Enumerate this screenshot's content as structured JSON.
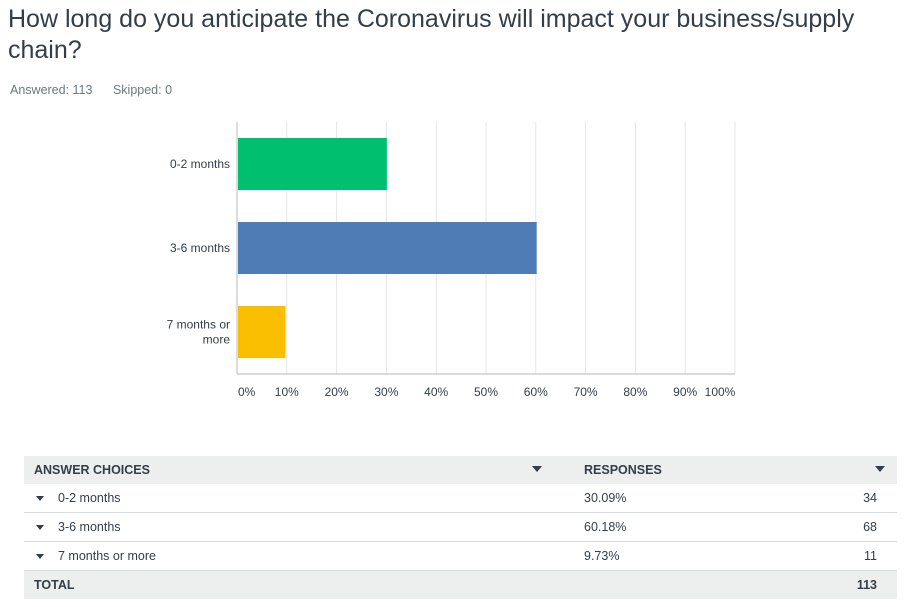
{
  "question": {
    "title": "How long do you anticipate the Coronavirus will impact your business/supply chain?",
    "answered": "Answered: 113",
    "skipped": "Skipped: 0"
  },
  "chart_data": {
    "type": "bar",
    "orientation": "horizontal",
    "categories": [
      "0-2 months",
      "3-6 months",
      "7 months or more"
    ],
    "category_lines": [
      [
        "0-2 months"
      ],
      [
        "3-6 months"
      ],
      [
        "7 months or",
        "more"
      ]
    ],
    "values": [
      30.09,
      60.18,
      9.73
    ],
    "colors": [
      "#00bf6f",
      "#507cb6",
      "#f9be00"
    ],
    "xlim": [
      0,
      100
    ],
    "ticks": [
      "0%",
      "10%",
      "20%",
      "30%",
      "40%",
      "50%",
      "60%",
      "70%",
      "80%",
      "90%",
      "100%"
    ],
    "grid": true
  },
  "table": {
    "headers": [
      "ANSWER CHOICES",
      "RESPONSES"
    ],
    "rows": [
      {
        "choice": "0-2 months",
        "percent": "30.09%",
        "count": "34"
      },
      {
        "choice": "3-6 months",
        "percent": "60.18%",
        "count": "68"
      },
      {
        "choice": "7 months or more",
        "percent": "9.73%",
        "count": "11"
      }
    ],
    "total_label": "TOTAL",
    "total_count": "113"
  }
}
